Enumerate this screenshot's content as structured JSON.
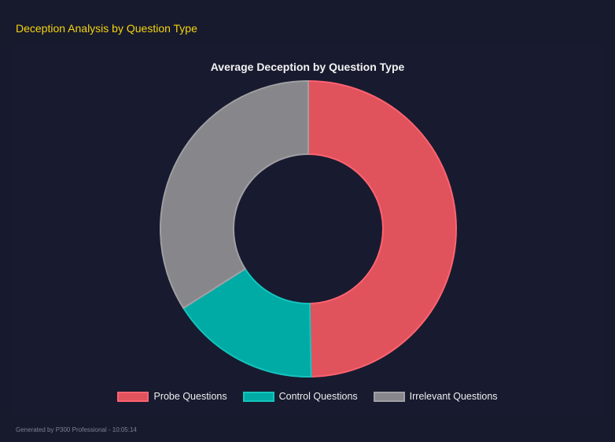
{
  "header": {
    "title": "Deception Analysis by Question Type"
  },
  "footer": {
    "text": "Generated by P300 Professional - 10:05:14"
  },
  "chart_data": {
    "type": "pie",
    "variant": "doughnut",
    "title": "Average Deception by Question Type",
    "categories": [
      "Probe Questions",
      "Control Questions",
      "Irrelevant Questions"
    ],
    "values": [
      49.7,
      16.3,
      34.0
    ],
    "colors": [
      "#e0525c",
      "#00aaa5",
      "#87878b"
    ],
    "border_colors": [
      "#ff6370",
      "#14c4bd",
      "#a0a0a4"
    ],
    "legend": "bottom"
  }
}
